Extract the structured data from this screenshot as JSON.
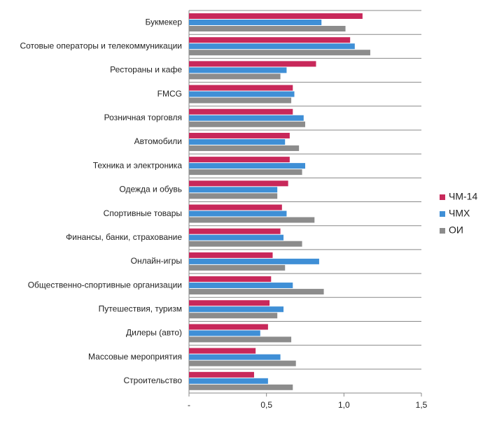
{
  "chart_data": {
    "type": "hbar",
    "categories": [
      "Букмекер",
      "Сотовые операторы и телекоммуникации",
      "Рестораны и кафе",
      "FMCG",
      "Розничная торговля",
      "Автомобили",
      "Техника  и электроника",
      "Одежда и обувь",
      "Спортивные товары",
      "Финансы, банки, страхование",
      "Онлайн-игры",
      "Общественно-спортивные организации",
      "Путешествия, туризм",
      "Дилеры (авто)",
      "Массовые мероприятия",
      "Строительство"
    ],
    "series": [
      {
        "name": "ЧМ-14",
        "color": "#c8285a",
        "values": [
          1.12,
          1.04,
          0.82,
          0.67,
          0.67,
          0.65,
          0.65,
          0.64,
          0.6,
          0.59,
          0.54,
          0.53,
          0.52,
          0.51,
          0.43,
          0.42
        ]
      },
      {
        "name": "ЧМХ",
        "color": "#3f8fd6",
        "values": [
          0.855,
          1.07,
          0.63,
          0.68,
          0.74,
          0.62,
          0.75,
          0.57,
          0.63,
          0.61,
          0.84,
          0.67,
          0.61,
          0.46,
          0.59,
          0.51
        ]
      },
      {
        "name": "ОИ",
        "color": "#8c8c8c",
        "values": [
          1.01,
          1.17,
          0.59,
          0.66,
          0.75,
          0.71,
          0.73,
          0.57,
          0.81,
          0.73,
          0.62,
          0.87,
          0.57,
          0.66,
          0.69,
          0.67
        ]
      }
    ],
    "xlim": [
      0,
      1.5
    ],
    "xticks": [
      {
        "value": 0,
        "label": "-"
      },
      {
        "value": 0.5,
        "label": "0,5"
      },
      {
        "value": 1,
        "label": "1,0"
      },
      {
        "value": 1.5,
        "label": "1,5"
      }
    ],
    "legend": "right"
  }
}
